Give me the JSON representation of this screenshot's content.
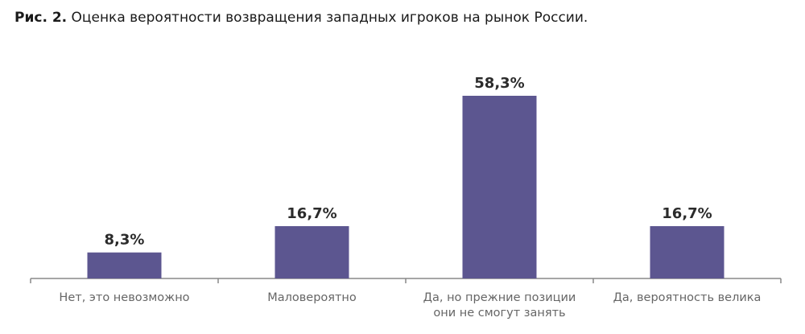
{
  "caption": {
    "figure_label": "Рис. 2.",
    "text": "Оценка вероятности возвращения западных игроков на рынок России."
  },
  "colors": {
    "bar": "#5c5690",
    "axis": "#888888"
  },
  "chart_data": {
    "type": "bar",
    "title": "Оценка вероятности возвращения западных игроков на рынок России.",
    "categories": [
      [
        "Нет, это невозможно"
      ],
      [
        "Маловероятно"
      ],
      [
        "Да, но прежние позиции",
        "они не смогут занять"
      ],
      [
        "Да, вероятность велика"
      ]
    ],
    "values": [
      8.3,
      16.7,
      58.3,
      16.7
    ],
    "data_labels": [
      "8,3%",
      "16,7%",
      "58,3%",
      "16,7%"
    ],
    "ylim": [
      0,
      58.3
    ],
    "grid": false,
    "legend": "none"
  }
}
